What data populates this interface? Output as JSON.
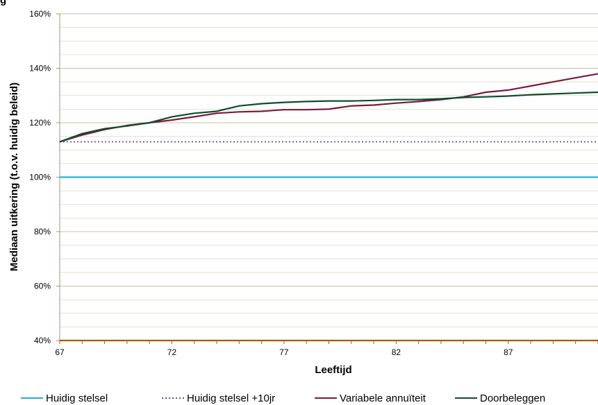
{
  "chart_data": {
    "type": "line",
    "title": "g",
    "xlabel": "Leeftijd",
    "ylabel": "Mediaan uitkering (t.o.v. huidig beleid)",
    "xlim": [
      67,
      91
    ],
    "ylim": [
      40,
      160
    ],
    "x_ticks": [
      67,
      72,
      77,
      82,
      87
    ],
    "y_ticks": [
      40,
      60,
      80,
      100,
      120,
      140,
      160
    ],
    "y_tick_labels": [
      "40%",
      "60%",
      "80%",
      "100%",
      "120%",
      "140%",
      "160%"
    ],
    "y_minor_step": 5,
    "grid": true,
    "legend_position": "bottom",
    "x": [
      67,
      68,
      69,
      70,
      71,
      72,
      73,
      74,
      75,
      76,
      77,
      78,
      79,
      80,
      81,
      82,
      83,
      84,
      85,
      86,
      87,
      88,
      89,
      90,
      91
    ],
    "series": [
      {
        "name": "Huidig stelsel",
        "color": "#1fb4cd",
        "style": "solid",
        "values": [
          100,
          100,
          100,
          100,
          100,
          100,
          100,
          100,
          100,
          100,
          100,
          100,
          100,
          100,
          100,
          100,
          100,
          100,
          100,
          100,
          100,
          100,
          100,
          100,
          100
        ]
      },
      {
        "name": "Huidig stelsel +10jr",
        "color": "#6e4a8e",
        "style": "dotted",
        "values": [
          113,
          113,
          113,
          113,
          113,
          113,
          113,
          113,
          113,
          113,
          113,
          113,
          113,
          113,
          113,
          113,
          113,
          113,
          113,
          113,
          113,
          113,
          113,
          113,
          113
        ]
      },
      {
        "name": "Variabele annuïteit",
        "color": "#7a1a3a",
        "style": "solid",
        "values": [
          113,
          115.5,
          117.5,
          119,
          120,
          121,
          122.2,
          123.5,
          124,
          124.2,
          124.8,
          124.8,
          125,
          126.2,
          126.5,
          127.2,
          127.8,
          128.5,
          129.5,
          131.2,
          132,
          133.5,
          135,
          136.5,
          138
        ]
      },
      {
        "name": "Doorbeleggen",
        "color": "#0d4d2a",
        "style": "solid",
        "values": [
          113,
          116,
          117.8,
          118.8,
          120,
          122.2,
          123.5,
          124.2,
          126.2,
          127,
          127.5,
          127.8,
          128,
          128,
          128.2,
          128.5,
          128.5,
          128.8,
          129.3,
          129.5,
          129.8,
          130.3,
          130.6,
          130.9,
          131.2
        ]
      },
      {
        "name": "",
        "color": "#a55a12",
        "style": "solid",
        "values": [
          40,
          40,
          40,
          40,
          40,
          40,
          40,
          40,
          40,
          40,
          40,
          40,
          40,
          40,
          40,
          40,
          40,
          40,
          40,
          40,
          40,
          40,
          40,
          40,
          40
        ]
      }
    ]
  }
}
